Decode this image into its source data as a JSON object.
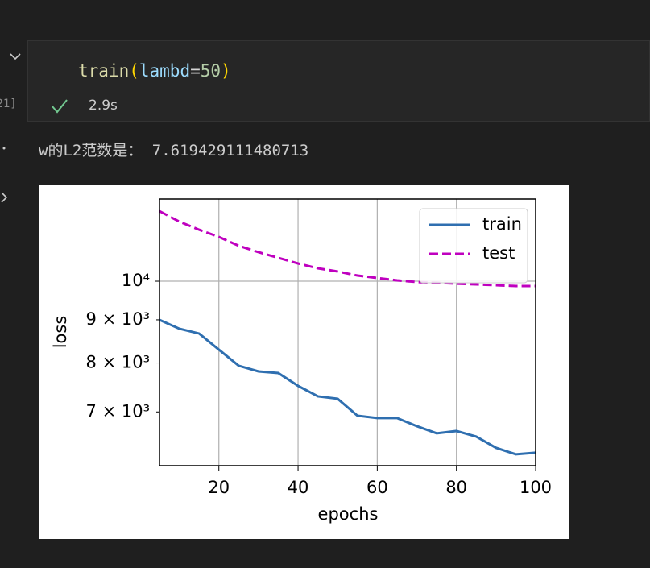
{
  "cell": {
    "execution_label": "[21]",
    "code_tokens": [
      "train",
      "(",
      "lambd",
      "=",
      "50",
      ")"
    ],
    "duration": "2.9s"
  },
  "output": {
    "text": "w的L2范数是： 7.619429111480713"
  },
  "chart_data": {
    "type": "line",
    "xlabel": "epochs",
    "ylabel": "loss",
    "x": [
      5,
      10,
      15,
      20,
      25,
      30,
      35,
      40,
      45,
      50,
      55,
      60,
      65,
      70,
      75,
      80,
      85,
      90,
      95,
      100
    ],
    "series": [
      {
        "name": "train",
        "color": "#2f6fb0",
        "linestyle": "solid",
        "values": [
          9000,
          8785,
          8670,
          8297,
          7940,
          7818,
          7784,
          7516,
          7304,
          7256,
          6928,
          6884,
          6884,
          6733,
          6603,
          6645,
          6544,
          6347,
          6236,
          6263
        ]
      },
      {
        "name": "test",
        "color": "#bf00bf",
        "linestyle": "dashed",
        "values": [
          12106,
          11766,
          11509,
          11285,
          11015,
          10824,
          10659,
          10496,
          10359,
          10268,
          10155,
          10088,
          10022,
          9978,
          9956,
          9934,
          9912,
          9891,
          9869,
          9869
        ]
      }
    ],
    "xlim": [
      5,
      100
    ],
    "xticks": [
      20,
      40,
      60,
      80,
      100
    ],
    "ylim": [
      6045,
      12514
    ],
    "yscale": "log",
    "yticks": [
      {
        "value": 10000,
        "label": "10⁴"
      }
    ],
    "yminorticks": [
      {
        "value": 9000,
        "label": "9 × 10³"
      },
      {
        "value": 8000,
        "label": "8 × 10³"
      },
      {
        "value": 7000,
        "label": "7 × 10³"
      }
    ],
    "grid": true,
    "legend": "upper right"
  }
}
